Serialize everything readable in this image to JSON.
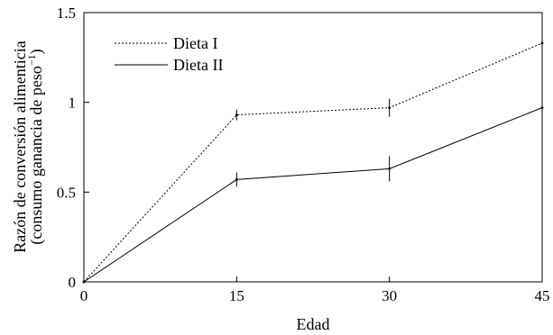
{
  "chart_data": {
    "type": "line",
    "xlabel": "Edad",
    "ylabel_line1": "Razón de conversión alimenticia",
    "ylabel_line2_prefix": "(consumo ganancia de peso",
    "ylabel_line2_sup": "−1",
    "ylabel_line2_suffix": ")",
    "xlim": [
      0,
      45
    ],
    "ylim": [
      0,
      1.5
    ],
    "xticks": [
      0,
      15,
      30,
      45
    ],
    "xtick_labels": [
      "0",
      "15",
      "30",
      "45"
    ],
    "yticks": [
      0,
      0.5,
      1,
      1.5
    ],
    "ytick_labels": [
      "0",
      "0.5",
      "1",
      "1.5"
    ],
    "grid": false,
    "legend_position": "top-left",
    "series": [
      {
        "name": "Dieta I",
        "style": "dotted",
        "x": [
          0,
          15,
          30,
          45
        ],
        "y": [
          0,
          0.93,
          0.97,
          1.33
        ],
        "error": [
          0,
          0.03,
          0.05,
          0.07
        ]
      },
      {
        "name": "Dieta II",
        "style": "solid",
        "x": [
          0,
          15,
          30,
          45
        ],
        "y": [
          0,
          0.57,
          0.63,
          0.97
        ],
        "error": [
          0,
          0.04,
          0.07,
          0
        ]
      }
    ]
  }
}
